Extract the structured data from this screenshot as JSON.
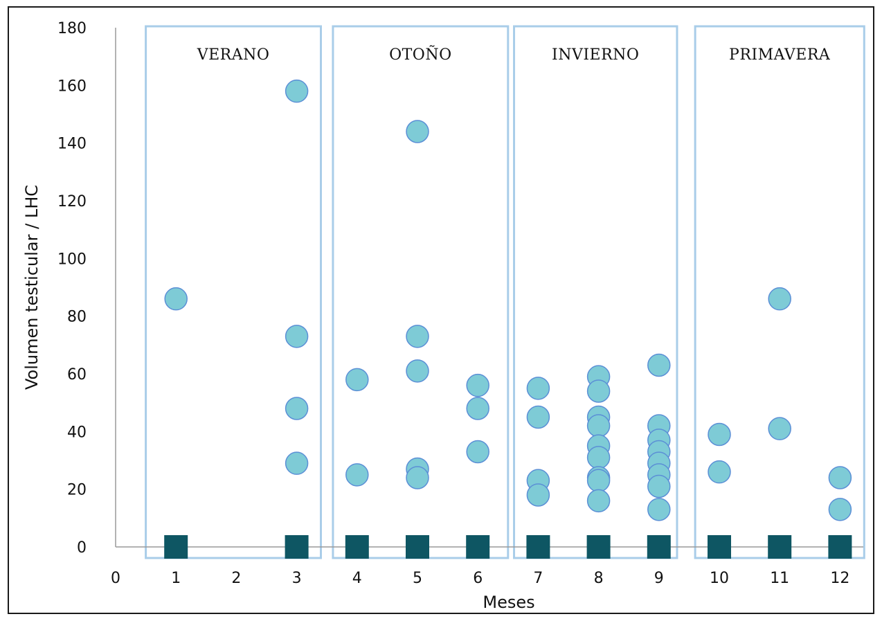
{
  "chart_data": {
    "type": "scatter",
    "xlabel": "Meses",
    "ylabel": "Volumen testicular / LHC",
    "xlim": [
      0,
      12
    ],
    "ylim": [
      0,
      180
    ],
    "x_ticks": [
      "0",
      "1",
      "2",
      "3",
      "4",
      "5",
      "6",
      "7",
      "8",
      "9",
      "10",
      "11",
      "12"
    ],
    "y_ticks": [
      "0",
      "20",
      "40",
      "60",
      "80",
      "100",
      "120",
      "140",
      "160",
      "180"
    ],
    "grid": false,
    "seasons": [
      {
        "label": "VERANO",
        "x_range": [
          0.5,
          3.4
        ]
      },
      {
        "label": "OTOÑO",
        "x_range": [
          3.6,
          6.5
        ]
      },
      {
        "label": "INVIERNO",
        "x_range": [
          6.6,
          9.3
        ]
      },
      {
        "label": "PRIMAVERA",
        "x_range": [
          9.6,
          12.4
        ]
      }
    ],
    "series": [
      {
        "marker": "circle",
        "color": "#7ecbd6",
        "edge_color": "#5b8fd6",
        "points": [
          [
            1,
            86
          ],
          [
            3,
            158
          ],
          [
            3,
            73
          ],
          [
            3,
            48
          ],
          [
            3,
            29
          ],
          [
            4,
            58
          ],
          [
            4,
            25
          ],
          [
            5,
            144
          ],
          [
            5,
            73
          ],
          [
            5,
            61
          ],
          [
            5,
            27
          ],
          [
            5,
            24
          ],
          [
            6,
            56
          ],
          [
            6,
            48
          ],
          [
            6,
            33
          ],
          [
            7,
            55
          ],
          [
            7,
            45
          ],
          [
            7,
            23
          ],
          [
            7,
            18
          ],
          [
            8,
            59
          ],
          [
            8,
            54
          ],
          [
            8,
            45
          ],
          [
            8,
            42
          ],
          [
            8,
            35
          ],
          [
            8,
            31
          ],
          [
            8,
            24
          ],
          [
            8,
            23
          ],
          [
            8,
            16
          ],
          [
            9,
            63
          ],
          [
            9,
            42
          ],
          [
            9,
            37
          ],
          [
            9,
            33
          ],
          [
            9,
            29
          ],
          [
            9,
            25
          ],
          [
            9,
            21
          ],
          [
            9,
            13
          ],
          [
            10,
            39
          ],
          [
            10,
            26
          ],
          [
            11,
            86
          ],
          [
            11,
            41
          ],
          [
            12,
            24
          ],
          [
            12,
            13
          ]
        ]
      },
      {
        "marker": "square",
        "color": "#0e5663",
        "points": [
          [
            1,
            0
          ],
          [
            3,
            0
          ],
          [
            4,
            0
          ],
          [
            5,
            0
          ],
          [
            6,
            0
          ],
          [
            7,
            0
          ],
          [
            8,
            0
          ],
          [
            9,
            0
          ],
          [
            10,
            0
          ],
          [
            11,
            0
          ],
          [
            12,
            0
          ]
        ]
      }
    ]
  }
}
